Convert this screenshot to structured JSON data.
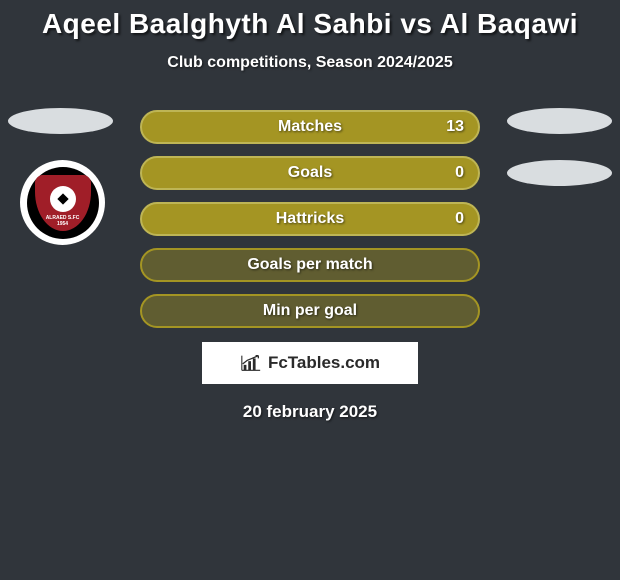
{
  "title": {
    "text": "Aqeel Baalghyth Al Sahbi vs Al Baqawi",
    "fontsize": 28,
    "color": "#ffffff"
  },
  "subtitle": {
    "text": "Club competitions, Season 2024/2025",
    "fontsize": 16,
    "color": "#ffffff"
  },
  "background_color": "#30353b",
  "ellipse_color": "#d9dde0",
  "badge": {
    "outer": "#ffffff",
    "ring": "#000000",
    "shield": "#a01e28",
    "ribbon_text": "ALRAED S.FC",
    "year": "1954"
  },
  "rows": [
    {
      "label": "Matches",
      "left": "",
      "right": "13",
      "fill": "#a49523",
      "border": "#beb555"
    },
    {
      "label": "Goals",
      "left": "",
      "right": "0",
      "fill": "#a49523",
      "border": "#beb555"
    },
    {
      "label": "Hattricks",
      "left": "",
      "right": "0",
      "fill": "#a49523",
      "border": "#beb555"
    },
    {
      "label": "Goals per match",
      "left": "",
      "right": "",
      "fill": "#605d31",
      "border": "#a49523"
    },
    {
      "label": "Min per goal",
      "left": "",
      "right": "",
      "fill": "#605d31",
      "border": "#a49523"
    }
  ],
  "row_style": {
    "height": 34,
    "radius": 17,
    "label_fontsize": 16,
    "value_fontsize": 16,
    "text_color": "#ffffff"
  },
  "brand": {
    "text": "FcTables.com",
    "bg": "#ffffff",
    "fg": "#2a2a2a",
    "fontsize": 17
  },
  "footer_date": {
    "text": "20 february 2025",
    "fontsize": 17,
    "color": "#ffffff"
  }
}
